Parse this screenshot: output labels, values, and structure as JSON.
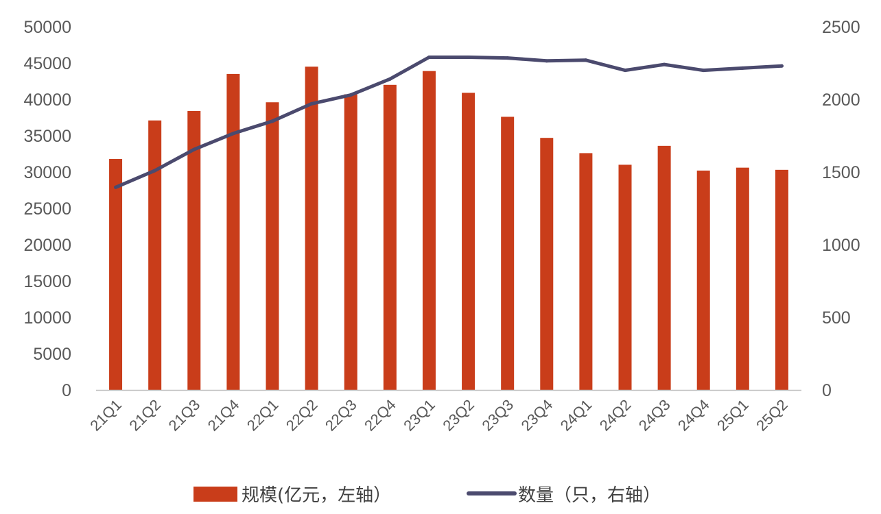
{
  "chart_data": {
    "type": "bar+line",
    "categories": [
      "21Q1",
      "21Q2",
      "21Q3",
      "21Q4",
      "22Q1",
      "22Q2",
      "22Q3",
      "22Q4",
      "23Q1",
      "23Q2",
      "23Q3",
      "23Q4",
      "24Q1",
      "24Q2",
      "24Q3",
      "24Q4",
      "25Q1",
      "25Q2"
    ],
    "series": [
      {
        "name": "规模(亿元，左轴）",
        "type": "bar",
        "axis": "left",
        "color": "#C93D1A",
        "values": [
          31800,
          37100,
          38400,
          43500,
          39600,
          44500,
          40700,
          42000,
          43900,
          40900,
          37600,
          34700,
          32600,
          31000,
          33600,
          30200,
          30600,
          30300
        ]
      },
      {
        "name": "数量（只，右轴）",
        "type": "line",
        "axis": "right",
        "color": "#4B4A6E",
        "values": [
          1395,
          1510,
          1655,
          1765,
          1850,
          1970,
          2030,
          2140,
          2290,
          2290,
          2285,
          2265,
          2270,
          2200,
          2240,
          2200,
          2215,
          2230
        ]
      }
    ],
    "y_left": {
      "min": 0,
      "max": 50000,
      "step": 5000,
      "ticks": [
        "0",
        "5000",
        "10000",
        "15000",
        "20000",
        "25000",
        "30000",
        "35000",
        "40000",
        "45000",
        "50000"
      ]
    },
    "y_right": {
      "min": 0,
      "max": 2500,
      "step": 500,
      "ticks": [
        "0",
        "500",
        "1000",
        "1500",
        "2000",
        "2500"
      ]
    },
    "grid": false,
    "legend_position": "bottom"
  }
}
